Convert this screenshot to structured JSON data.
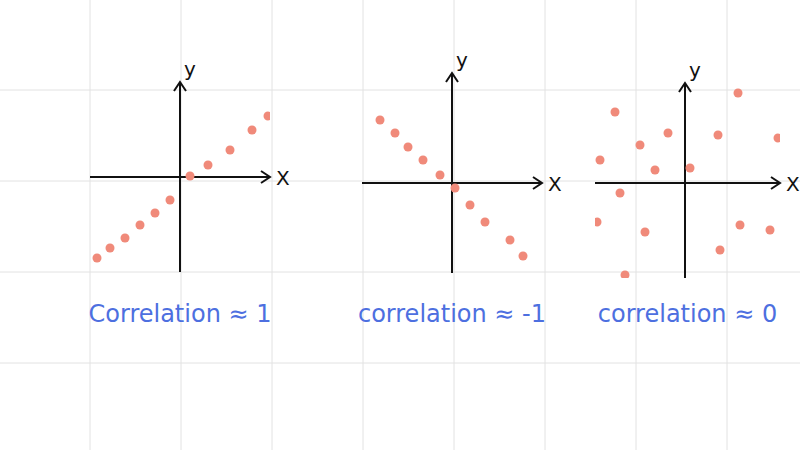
{
  "chart_data": [
    {
      "type": "scatter",
      "title": "Correlation ≈ 1",
      "x_label": "X",
      "y_label": "y",
      "x": [
        -8.3,
        -7,
        -5.5,
        -4,
        -2.5,
        -1,
        1,
        2.8,
        5,
        7.2,
        8.8
      ],
      "values": [
        -8.1,
        -7.1,
        -6.1,
        -4.8,
        -3.6,
        -2.3,
        0.1,
        1.2,
        2.7,
        4.7,
        6.1
      ],
      "xlim": [
        -9,
        9
      ],
      "ylim": [
        -9.5,
        9.5
      ],
      "tick_labels": false,
      "color": "#f08a7a",
      "marker": "circle"
    },
    {
      "type": "scatter",
      "title": "correlation ≈ -1",
      "x_label": "X",
      "y_label": "y",
      "x": [
        -7.2,
        -5.7,
        -4.4,
        -2.9,
        -1.2,
        0.3,
        1.8,
        3.3,
        5.8,
        7.1
      ],
      "values": [
        6.3,
        5,
        3.6,
        2.3,
        0.8,
        -0.5,
        -2.2,
        -3.9,
        -5.7,
        -7.3
      ],
      "xlim": [
        -9,
        9
      ],
      "ylim": [
        -9,
        11
      ],
      "tick_labels": false,
      "color": "#f08a7a",
      "marker": "circle"
    },
    {
      "type": "scatter",
      "title": "correlation ≈ 0",
      "x_label": "X",
      "y_label": "y",
      "x": [
        -7,
        -8.5,
        -6.5,
        -8.8,
        -6,
        -4,
        -4.5,
        -3,
        -1.7,
        0.5,
        3.3,
        5.3,
        8.5,
        5.5,
        3.5,
        9.3
      ],
      "values": [
        7.1,
        2.3,
        -1,
        -3.9,
        -9.2,
        -4.9,
        3.8,
        1.3,
        5,
        1.5,
        4.8,
        9,
        -4.7,
        -4.2,
        -6.7,
        4.5
      ],
      "xlim": [
        -9,
        9.5
      ],
      "ylim": [
        -9.5,
        10
      ],
      "tick_labels": false,
      "color": "#f08a7a",
      "marker": "circle"
    }
  ]
}
